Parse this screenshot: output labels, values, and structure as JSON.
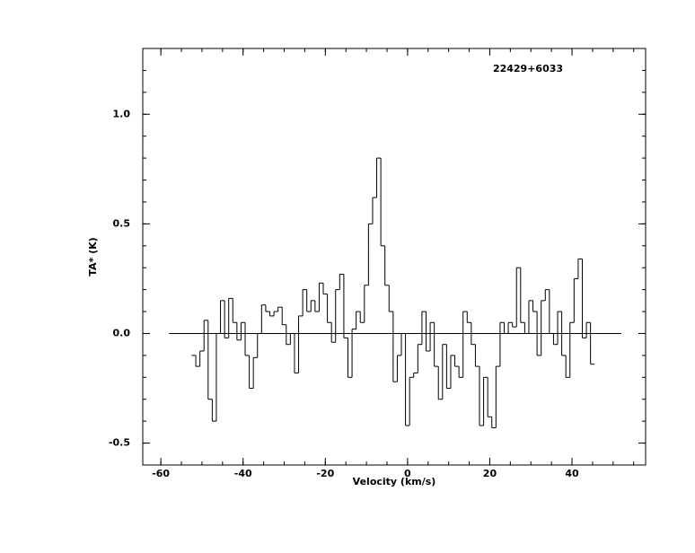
{
  "chart_data": {
    "type": "step",
    "title": "22429+6033",
    "x_label": "Velocity (km/s)",
    "y_label": "TA* (K)",
    "color": "#000000",
    "xlim": [
      -64.4,
      57.9
    ],
    "ylim": [
      -0.6,
      1.3
    ],
    "xticks": [
      -60,
      -40,
      -20,
      0,
      20,
      40
    ],
    "yticks": [
      {
        "value": -0.5,
        "label": "-0.5"
      },
      {
        "value": 0,
        "label": "0.0"
      },
      {
        "value": 0.5,
        "label": "0.5"
      },
      {
        "value": 1,
        "label": "1.0"
      }
    ],
    "baseline": {
      "value": 0,
      "x_range": [
        -58,
        52
      ]
    },
    "x": [
      -52,
      -51,
      -50,
      -49,
      -48,
      -47,
      -46,
      -45,
      -44,
      -43,
      -42,
      -41,
      -40,
      -39,
      -38,
      -37,
      -36,
      -35,
      -34,
      -33,
      -32,
      -31,
      -30,
      -29,
      -28,
      -27,
      -26,
      -25,
      -24,
      -23,
      -22,
      -21,
      -20,
      -19,
      -18,
      -17,
      -16,
      -15,
      -14,
      -13,
      -12,
      -11,
      -10,
      -9,
      -8,
      -7,
      -6,
      -5,
      -4,
      -3,
      -2,
      -1,
      0,
      1,
      2,
      3,
      4,
      5,
      6,
      7,
      8,
      9,
      10,
      11,
      12,
      13,
      14,
      15,
      16,
      17,
      18,
      19,
      20,
      21,
      22,
      23,
      24,
      25,
      26,
      27,
      28,
      29,
      30,
      31,
      32,
      33,
      34,
      35,
      36,
      37,
      38,
      39,
      40,
      41,
      42,
      43,
      44,
      45
    ],
    "values": [
      -0.1,
      -0.15,
      -0.08,
      0.06,
      -0.3,
      -0.4,
      0.0,
      0.15,
      -0.02,
      0.16,
      0.05,
      -0.03,
      0.05,
      -0.1,
      -0.25,
      -0.11,
      0.0,
      0.13,
      0.1,
      0.08,
      0.1,
      0.12,
      0.04,
      -0.05,
      0.0,
      -0.18,
      0.08,
      0.2,
      0.1,
      0.15,
      0.1,
      0.23,
      0.18,
      0.05,
      -0.04,
      0.2,
      0.27,
      -0.02,
      -0.2,
      0.02,
      0.1,
      0.05,
      0.22,
      0.5,
      0.62,
      0.8,
      0.4,
      0.22,
      0.1,
      -0.22,
      -0.1,
      0.0,
      -0.42,
      -0.2,
      -0.18,
      -0.05,
      0.1,
      -0.08,
      0.05,
      -0.15,
      -0.3,
      -0.05,
      -0.25,
      -0.1,
      -0.15,
      -0.2,
      0.1,
      0.05,
      -0.05,
      -0.15,
      -0.42,
      -0.2,
      -0.38,
      -0.43,
      -0.15,
      0.05,
      0.0,
      0.05,
      0.03,
      0.3,
      0.05,
      0.0,
      0.15,
      0.1,
      -0.1,
      0.15,
      0.2,
      0.0,
      -0.05,
      0.1,
      -0.1,
      -0.2,
      0.05,
      0.25,
      0.34,
      -0.02,
      0.05,
      -0.14
    ]
  }
}
